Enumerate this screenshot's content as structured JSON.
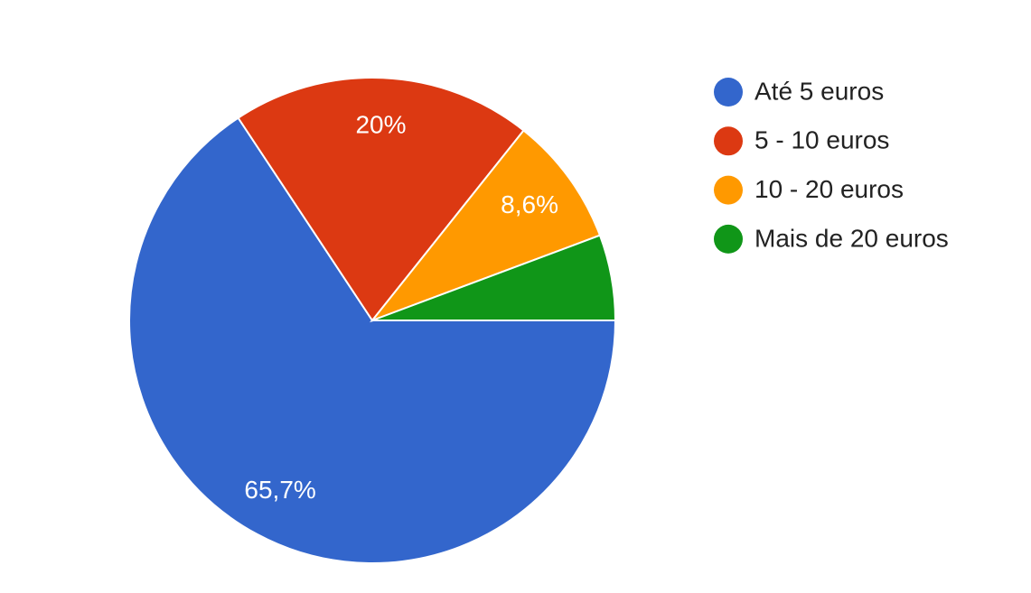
{
  "chart_data": {
    "type": "pie",
    "categories": [
      "Até 5 euros",
      "5 - 10 euros",
      "10 - 20 euros",
      "Mais de 20 euros"
    ],
    "values": [
      65.7,
      20,
      8.6,
      5.7
    ],
    "value_labels": [
      "65,7%",
      "20%",
      "8,6%",
      null
    ],
    "colors": [
      "#3366cc",
      "#dc3912",
      "#ff9900",
      "#109618"
    ],
    "legend": "right"
  }
}
